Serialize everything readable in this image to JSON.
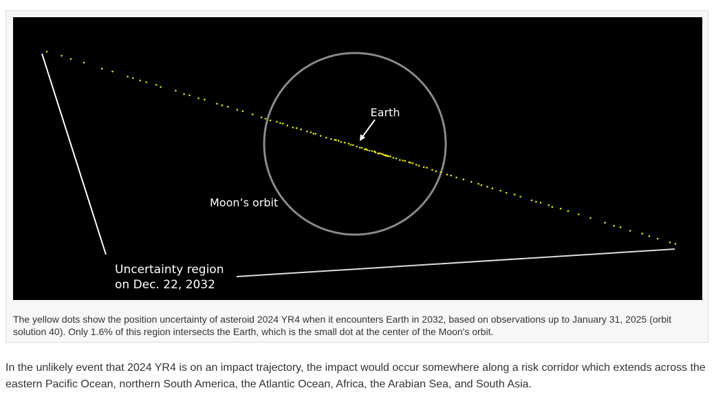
{
  "figure": {
    "labels": {
      "earth": "Earth",
      "moon_orbit": "Moon’s orbit",
      "uncertainty": [
        "Uncertainty region",
        "on Dec. 22, 2032"
      ]
    },
    "caption": "The yellow dots show the position uncertainty of asteroid 2024 YR4 when it encounters Earth in 2032, based on observations up to January 31, 2025 (orbit solution 40). Only 1.6% of this region intersects the Earth, which is the small dot at the center of the Moon's orbit."
  },
  "paragraph": "In the unlikely event that 2024 YR4 is on an impact trajectory, the impact would occur somewhere along a risk corridor which extends across the eastern Pacific Ocean, northern South America, the Atlantic Ocean, Africa, the Arabian Sea, and South Asia."
}
